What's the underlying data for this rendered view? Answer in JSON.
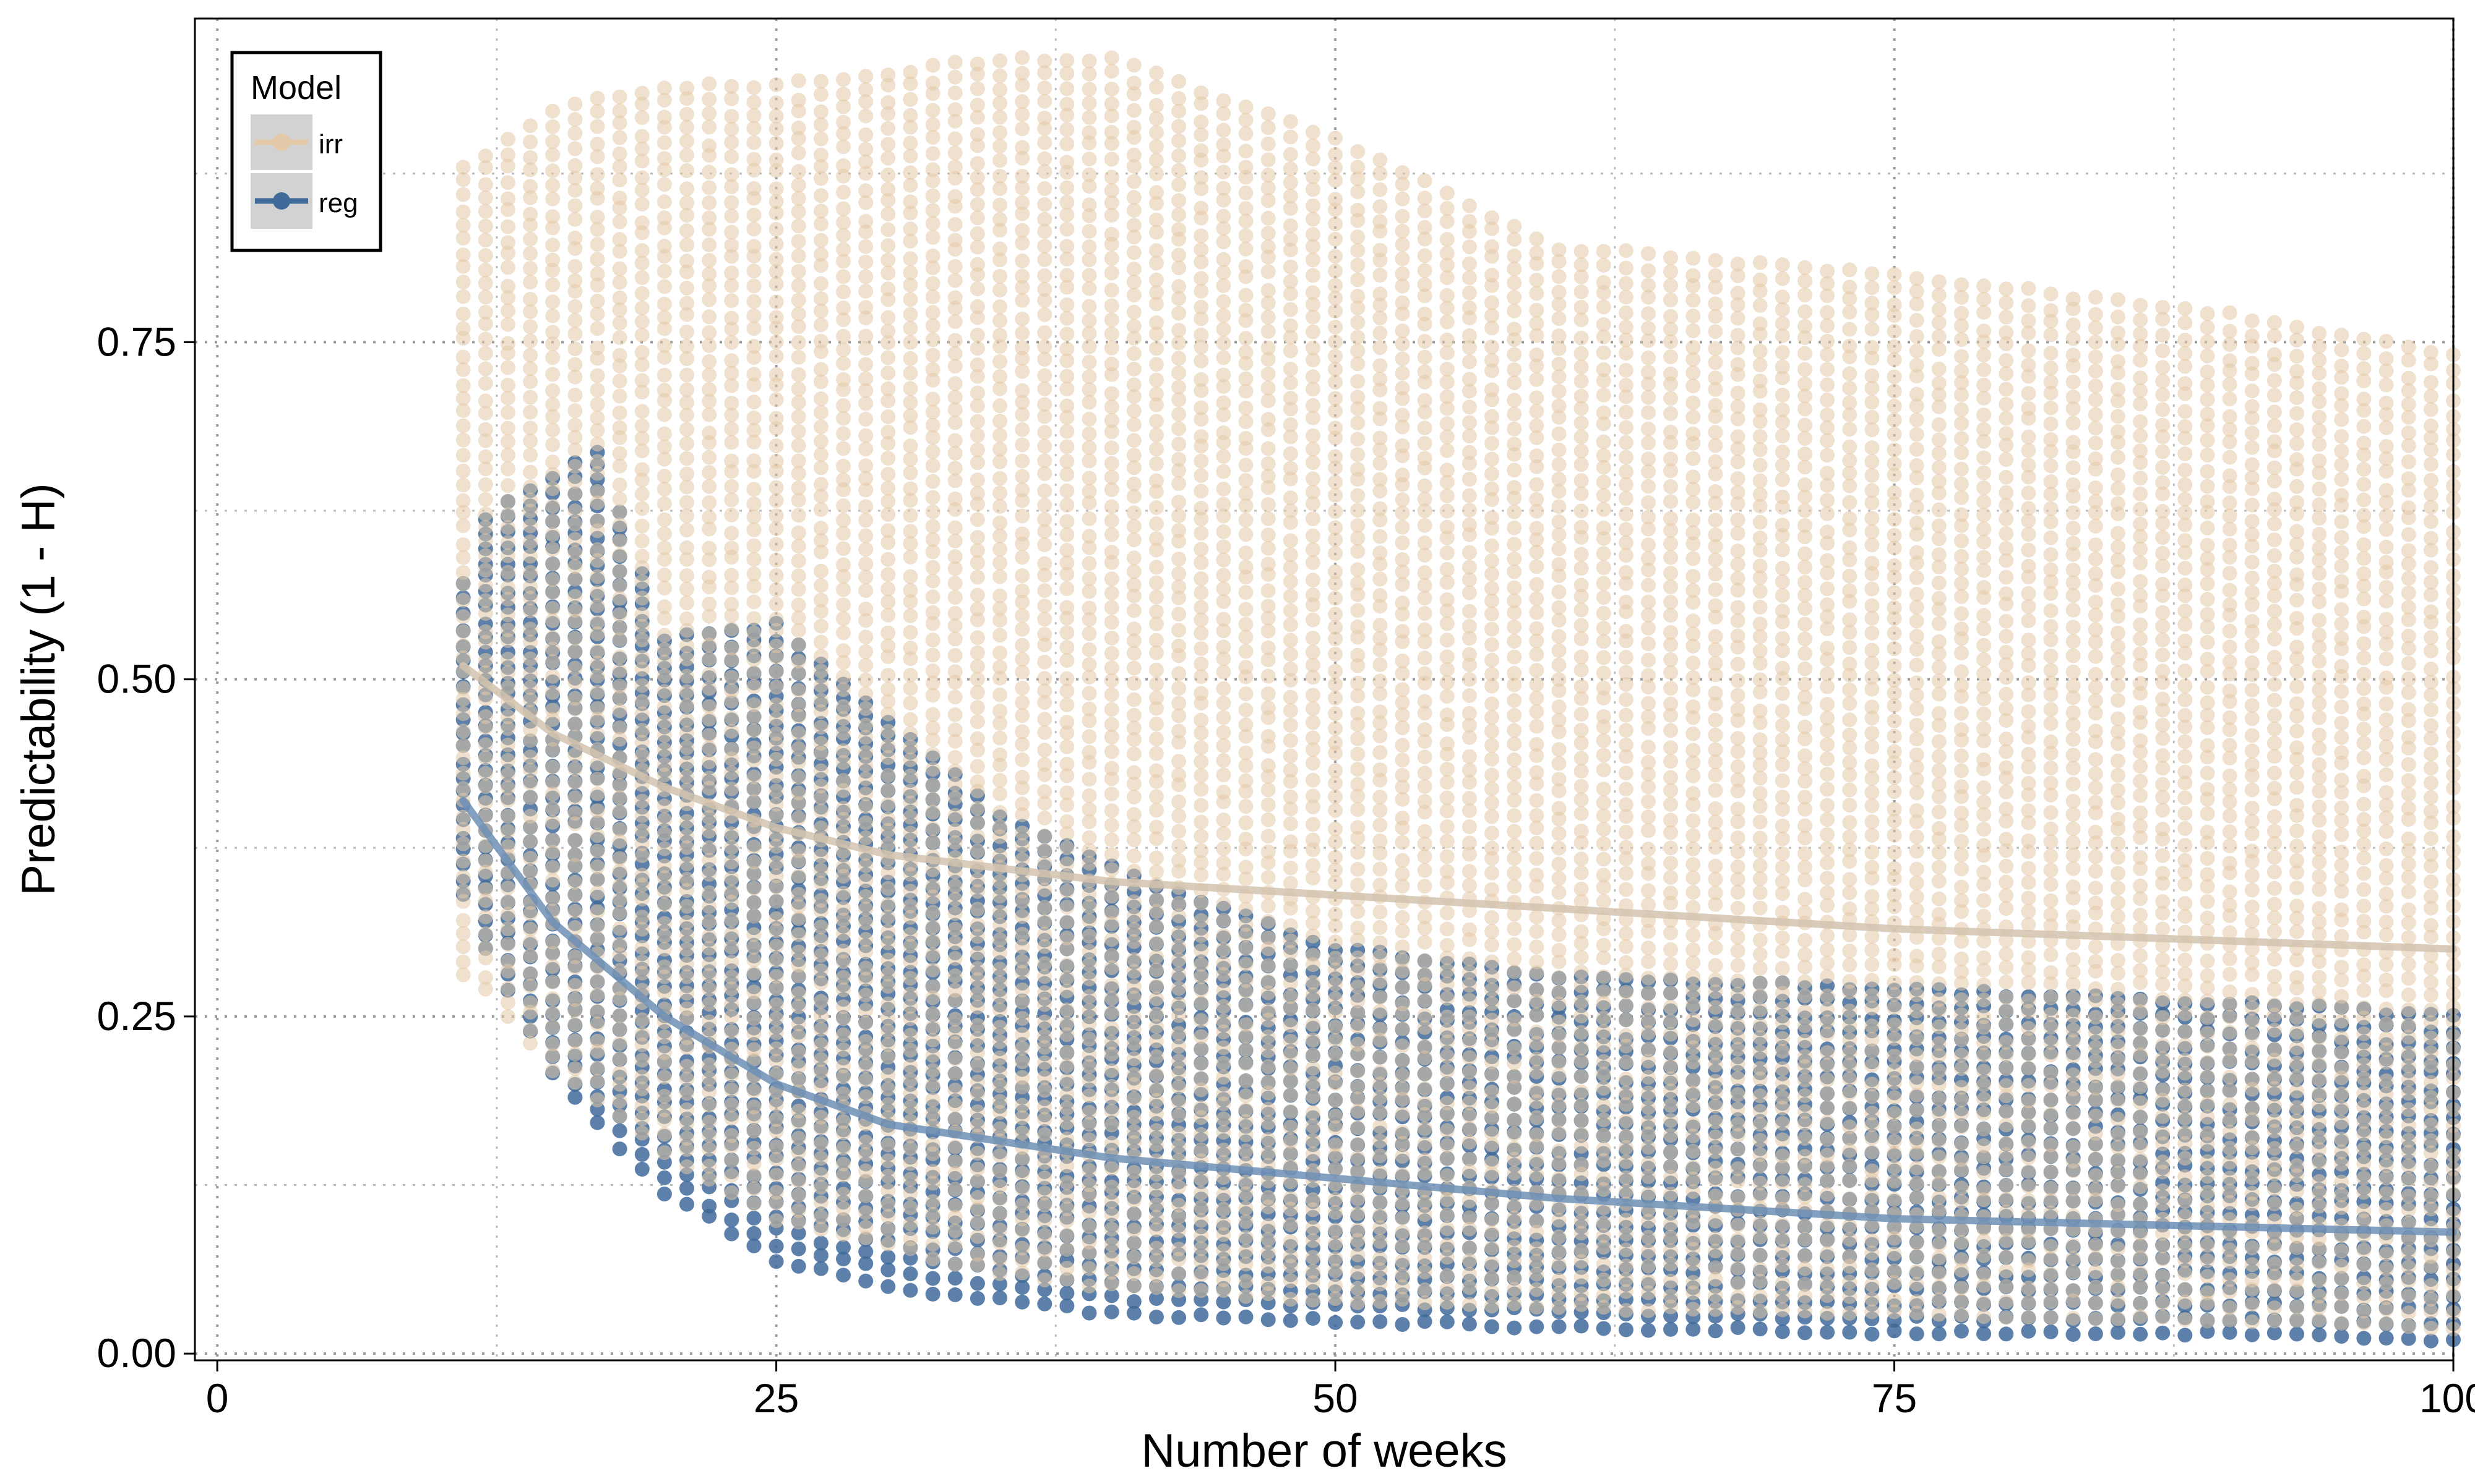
{
  "chart_data": {
    "type": "scatter",
    "title": "",
    "xlabel": "Number of weeks",
    "ylabel": "Predictability (1 - H)",
    "xlim": [
      -1,
      100
    ],
    "ylim": [
      -0.005,
      0.99
    ],
    "xticks": [
      0,
      25,
      50,
      75,
      100
    ],
    "xtick_labels": [
      "0",
      "25",
      "50",
      "75",
      "100"
    ],
    "yticks": [
      0.0,
      0.25,
      0.5,
      0.75
    ],
    "ytick_labels": [
      "0.00",
      "0.25",
      "0.50",
      "0.75"
    ],
    "grid": true,
    "legend": {
      "title": "Model",
      "placement": "top-left",
      "entries": [
        {
          "label": "irr",
          "color": "#e3c9a8"
        },
        {
          "label": "reg",
          "color": "#3f6a9a"
        }
      ]
    },
    "series": [
      {
        "name": "irr",
        "color": "#e3c9a8",
        "point_range": {
          "x": [
            11,
            12,
            13,
            14,
            15,
            17,
            20,
            25,
            30,
            35,
            40,
            50,
            60,
            75,
            90,
            100
          ],
          "y_min": [
            0.28,
            0.27,
            0.25,
            0.23,
            0.21,
            0.19,
            0.15,
            0.1,
            0.08,
            0.06,
            0.05,
            0.04,
            0.035,
            0.03,
            0.025,
            0.02
          ],
          "y_max": [
            0.88,
            0.89,
            0.9,
            0.91,
            0.92,
            0.93,
            0.94,
            0.94,
            0.95,
            0.96,
            0.96,
            0.9,
            0.82,
            0.8,
            0.77,
            0.74
          ]
        },
        "trend": {
          "x": [
            11,
            15,
            20,
            25,
            30,
            40,
            50,
            60,
            75,
            100
          ],
          "y": [
            0.51,
            0.46,
            0.42,
            0.39,
            0.37,
            0.35,
            0.34,
            0.33,
            0.315,
            0.3
          ]
        }
      },
      {
        "name": "reg",
        "color": "#3f6a9a",
        "point_range": {
          "x": [
            11,
            12,
            13,
            14,
            15,
            17,
            20,
            25,
            30,
            35,
            40,
            50,
            60,
            75,
            90,
            100
          ],
          "y_min": [
            0.34,
            0.3,
            0.27,
            0.24,
            0.21,
            0.17,
            0.12,
            0.07,
            0.05,
            0.04,
            0.03,
            0.025,
            0.02,
            0.015,
            0.015,
            0.01
          ],
          "y_max": [
            0.57,
            0.62,
            0.63,
            0.64,
            0.65,
            0.67,
            0.53,
            0.54,
            0.47,
            0.4,
            0.36,
            0.3,
            0.28,
            0.27,
            0.26,
            0.25
          ]
        },
        "trend": {
          "x": [
            11,
            15,
            20,
            25,
            30,
            40,
            50,
            60,
            75,
            100
          ],
          "y": [
            0.41,
            0.32,
            0.25,
            0.2,
            0.17,
            0.145,
            0.13,
            0.115,
            0.1,
            0.09
          ]
        }
      }
    ]
  }
}
